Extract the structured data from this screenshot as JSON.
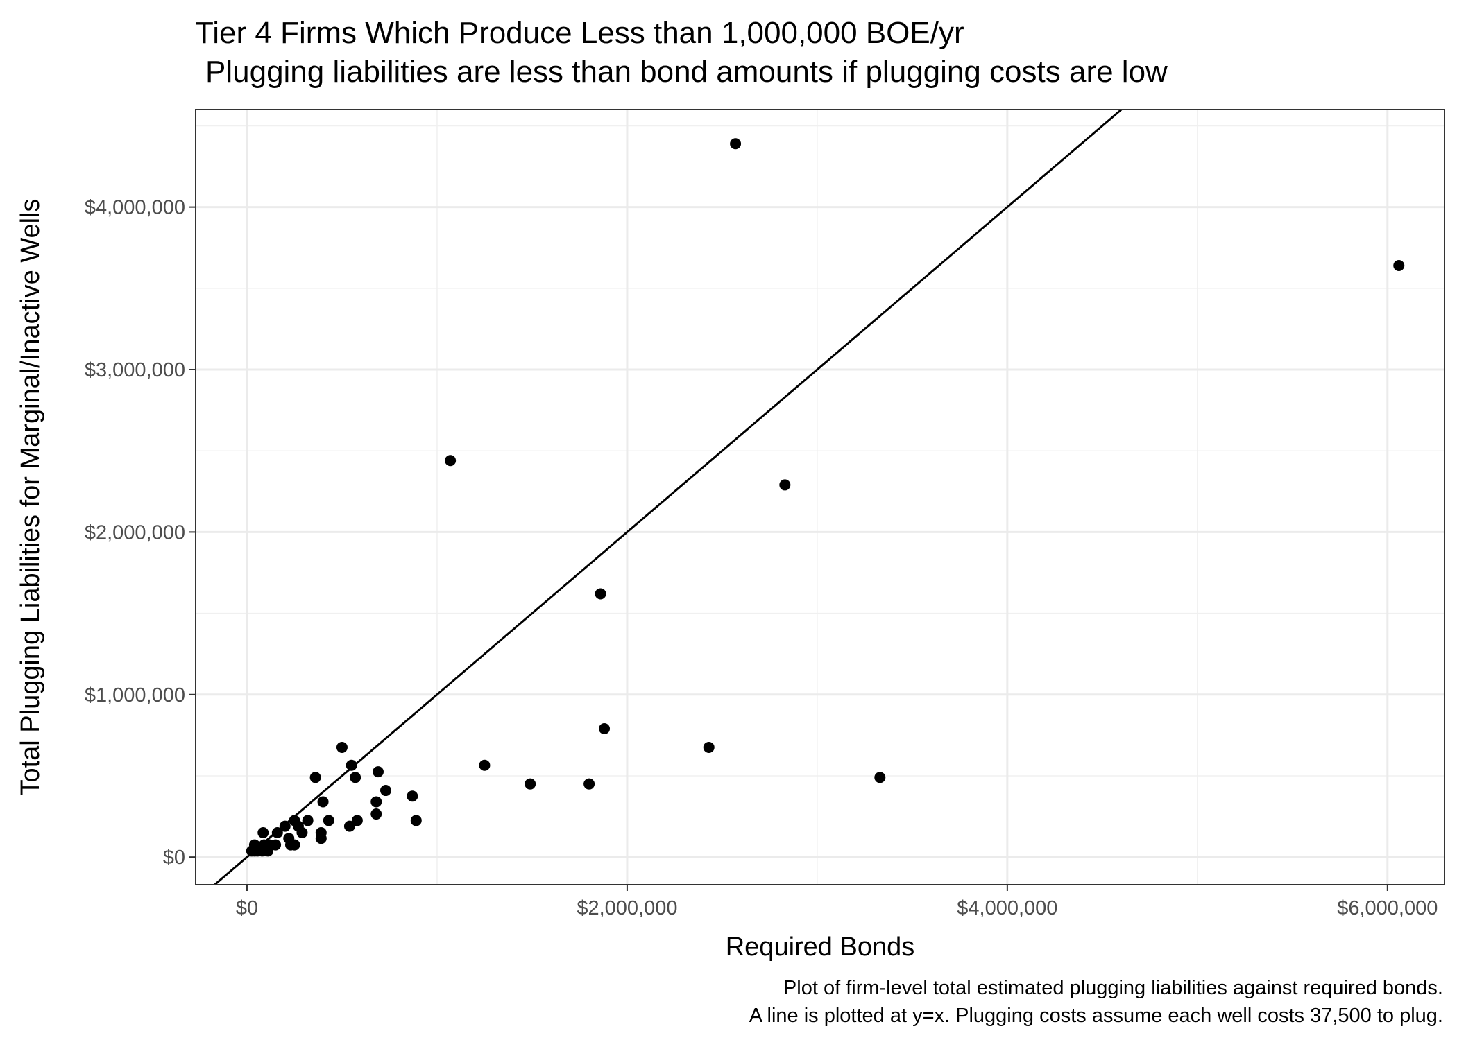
{
  "chart_data": {
    "type": "scatter",
    "title": "Tier 4 Firms Which Produce Less than 1,000,000 BOE/yr",
    "subtitle": "Plugging liabilities are less than bond amounts if plugging costs are low",
    "xlabel": "Required Bonds",
    "ylabel": "Total Plugging Liabilities for Marginal/Inactive Wells",
    "caption": [
      "Plot of firm-level total estimated plugging liabilities against required bonds.",
      "A line is plotted at y=x. Plugging costs assume each well costs 37,500 to plug."
    ],
    "xlim": [
      -270000,
      6300000
    ],
    "ylim": [
      -170000,
      4600000
    ],
    "x_ticks": [
      0,
      2000000,
      4000000,
      6000000
    ],
    "x_tick_labels": [
      "$0",
      "$2,000,000",
      "$4,000,000",
      "$6,000,000"
    ],
    "y_ticks": [
      0,
      1000000,
      2000000,
      3000000,
      4000000
    ],
    "y_tick_labels": [
      "$0",
      "$1,000,000",
      "$2,000,000",
      "$3,000,000",
      "$4,000,000"
    ],
    "x_minor_ticks": [
      1000000,
      3000000,
      5000000
    ],
    "y_minor_ticks": [
      500000,
      1500000,
      2500000,
      3500000,
      4500000
    ],
    "grid": true,
    "reference_line": "y=x",
    "points": [
      {
        "x": 2570000,
        "y": 4390000
      },
      {
        "x": 6060000,
        "y": 3640000
      },
      {
        "x": 1070000,
        "y": 2440000
      },
      {
        "x": 2830000,
        "y": 2290000
      },
      {
        "x": 1860000,
        "y": 1620000
      },
      {
        "x": 1880000,
        "y": 790000
      },
      {
        "x": 2430000,
        "y": 675000
      },
      {
        "x": 3330000,
        "y": 490000
      },
      {
        "x": 1250000,
        "y": 565000
      },
      {
        "x": 1490000,
        "y": 450000
      },
      {
        "x": 1800000,
        "y": 450000
      },
      {
        "x": 500000,
        "y": 675000
      },
      {
        "x": 550000,
        "y": 565000
      },
      {
        "x": 690000,
        "y": 525000
      },
      {
        "x": 360000,
        "y": 490000
      },
      {
        "x": 570000,
        "y": 490000
      },
      {
        "x": 730000,
        "y": 410000
      },
      {
        "x": 870000,
        "y": 375000
      },
      {
        "x": 400000,
        "y": 340000
      },
      {
        "x": 680000,
        "y": 340000
      },
      {
        "x": 680000,
        "y": 265000
      },
      {
        "x": 890000,
        "y": 225000
      },
      {
        "x": 430000,
        "y": 225000
      },
      {
        "x": 580000,
        "y": 225000
      },
      {
        "x": 540000,
        "y": 190000
      },
      {
        "x": 320000,
        "y": 225000
      },
      {
        "x": 250000,
        "y": 225000
      },
      {
        "x": 270000,
        "y": 190000
      },
      {
        "x": 200000,
        "y": 190000
      },
      {
        "x": 290000,
        "y": 150000
      },
      {
        "x": 390000,
        "y": 150000
      },
      {
        "x": 390000,
        "y": 115000
      },
      {
        "x": 160000,
        "y": 150000
      },
      {
        "x": 220000,
        "y": 115000
      },
      {
        "x": 85000,
        "y": 150000
      },
      {
        "x": 150000,
        "y": 75000
      },
      {
        "x": 230000,
        "y": 75000
      },
      {
        "x": 250000,
        "y": 75000
      },
      {
        "x": 40000,
        "y": 75000
      },
      {
        "x": 90000,
        "y": 75000
      },
      {
        "x": 120000,
        "y": 75000
      },
      {
        "x": 25000,
        "y": 37500
      },
      {
        "x": 55000,
        "y": 37500
      },
      {
        "x": 80000,
        "y": 37500
      },
      {
        "x": 110000,
        "y": 37500
      },
      {
        "x": 40000,
        "y": 37500
      }
    ]
  }
}
